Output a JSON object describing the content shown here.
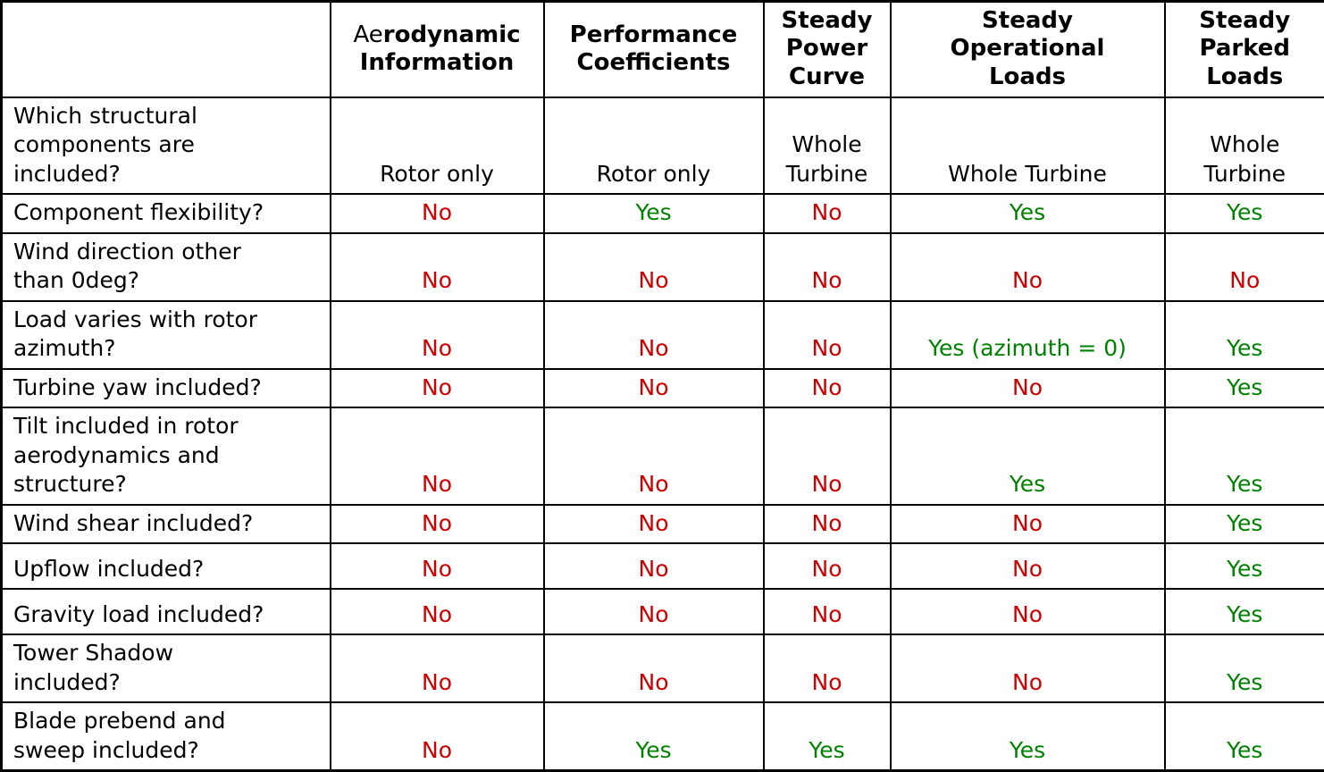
{
  "colors": {
    "yes": "#008000",
    "no": "#CC0000",
    "text": "#000000",
    "border": "#000000",
    "background": "#FFFFFF"
  },
  "table": {
    "header": {
      "corner": "",
      "columns": [
        {
          "prefix": "Ae",
          "label": "rodynamic\nInformation"
        },
        {
          "prefix": "",
          "label": "Performance\nCoefficients"
        },
        {
          "prefix": "",
          "label": "Steady\nPower\nCurve"
        },
        {
          "prefix": "",
          "label": "Steady\nOperational\nLoads"
        },
        {
          "prefix": "",
          "label": "Steady\nParked\nLoads"
        }
      ]
    },
    "rows": [
      {
        "label": "Which structural\ncomponents are\nincluded?",
        "cells": [
          {
            "text": "Rotor only",
            "type": "plain"
          },
          {
            "text": "Rotor only",
            "type": "plain"
          },
          {
            "text": "Whole\nTurbine",
            "type": "plain"
          },
          {
            "text": "Whole Turbine",
            "type": "plain"
          },
          {
            "text": "Whole\nTurbine",
            "type": "plain"
          }
        ]
      },
      {
        "label": "Component flexibility?",
        "cells": [
          {
            "text": "No",
            "type": "no"
          },
          {
            "text": "Yes",
            "type": "yes"
          },
          {
            "text": "No",
            "type": "no"
          },
          {
            "text": "Yes",
            "type": "yes"
          },
          {
            "text": "Yes",
            "type": "yes"
          }
        ]
      },
      {
        "label": "Wind direction other\nthan 0deg?",
        "cells": [
          {
            "text": "No",
            "type": "no"
          },
          {
            "text": "No",
            "type": "no"
          },
          {
            "text": "No",
            "type": "no"
          },
          {
            "text": "No",
            "type": "no"
          },
          {
            "text": "No",
            "type": "no"
          }
        ]
      },
      {
        "label": "Load varies with rotor\nazimuth?",
        "cells": [
          {
            "text": "No",
            "type": "no"
          },
          {
            "text": "No",
            "type": "no"
          },
          {
            "text": "No",
            "type": "no"
          },
          {
            "text": "Yes (azimuth = 0)",
            "type": "yes"
          },
          {
            "text": "Yes",
            "type": "yes"
          }
        ]
      },
      {
        "label": "Turbine yaw included?",
        "cells": [
          {
            "text": "No",
            "type": "no"
          },
          {
            "text": "No",
            "type": "no"
          },
          {
            "text": "No",
            "type": "no"
          },
          {
            "text": "No",
            "type": "no"
          },
          {
            "text": "Yes",
            "type": "yes"
          }
        ]
      },
      {
        "label": "Tilt included in rotor\naerodynamics and\nstructure?",
        "cells": [
          {
            "text": "No",
            "type": "no"
          },
          {
            "text": "No",
            "type": "no"
          },
          {
            "text": "No",
            "type": "no"
          },
          {
            "text": "Yes",
            "type": "yes"
          },
          {
            "text": "Yes",
            "type": "yes"
          }
        ]
      },
      {
        "label": "Wind shear included?",
        "cells": [
          {
            "text": "No",
            "type": "no"
          },
          {
            "text": "No",
            "type": "no"
          },
          {
            "text": "No",
            "type": "no"
          },
          {
            "text": "No",
            "type": "no"
          },
          {
            "text": "Yes",
            "type": "yes"
          }
        ]
      },
      {
        "label": "Upflow included?",
        "cells": [
          {
            "text": "No",
            "type": "no"
          },
          {
            "text": "No",
            "type": "no"
          },
          {
            "text": "No",
            "type": "no"
          },
          {
            "text": "No",
            "type": "no"
          },
          {
            "text": "Yes",
            "type": "yes"
          }
        ]
      },
      {
        "label": "Gravity load included?",
        "cells": [
          {
            "text": "No",
            "type": "no"
          },
          {
            "text": "No",
            "type": "no"
          },
          {
            "text": "No",
            "type": "no"
          },
          {
            "text": "No",
            "type": "no"
          },
          {
            "text": "Yes",
            "type": "yes"
          }
        ]
      },
      {
        "label": "Tower Shadow\nincluded?",
        "cells": [
          {
            "text": "No",
            "type": "no"
          },
          {
            "text": "No",
            "type": "no"
          },
          {
            "text": "No",
            "type": "no"
          },
          {
            "text": "No",
            "type": "no"
          },
          {
            "text": "Yes",
            "type": "yes"
          }
        ]
      },
      {
        "label": "Blade prebend and\nsweep included?",
        "cells": [
          {
            "text": "No",
            "type": "no"
          },
          {
            "text": "Yes",
            "type": "yes"
          },
          {
            "text": "Yes",
            "type": "yes"
          },
          {
            "text": "Yes",
            "type": "yes"
          },
          {
            "text": "Yes",
            "type": "yes"
          }
        ]
      }
    ]
  }
}
